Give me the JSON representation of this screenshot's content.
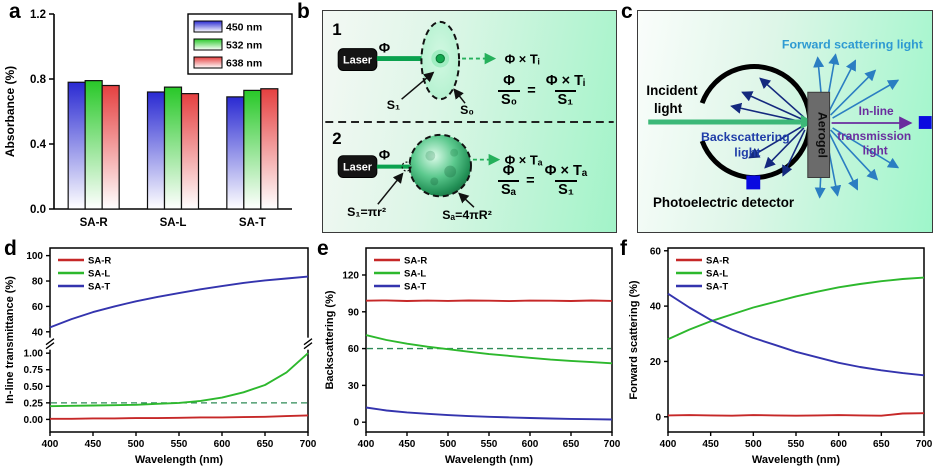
{
  "figure": {
    "panel_labels": {
      "a": "a",
      "b": "b",
      "c": "c",
      "d": "d",
      "e": "e",
      "f": "f"
    }
  },
  "panel_b": {
    "step1": "1",
    "step2": "2",
    "laser": "Laser",
    "phi": "Φ",
    "s1": "S₁",
    "s0": "S₀",
    "phi_ti": "Φ × Tᵢ",
    "phi_ta": "Φ × Tₐ",
    "s1_formula": "S₁=πr²",
    "sa_formula": "Sₐ=4πR²",
    "eq1": {
      "num1": "Φ",
      "den1": "S₀",
      "equals": "=",
      "num2": "Φ × Tᵢ",
      "den2": "S₁"
    },
    "eq2": {
      "num1": "Φ",
      "den1": "Sₐ",
      "equals": "=",
      "num2": "Φ × Tₐ",
      "den2": "S₁"
    }
  },
  "panel_c": {
    "incident_line1": "Incident",
    "incident_line2": "light",
    "forward_label": "Forward scattering light",
    "back_line1": "Backscattering",
    "back_line2": "light",
    "aerogel": "Aerogel",
    "inline_line1": "In-line",
    "inline_line2": "transmission",
    "inline_line3": "light",
    "detector_label": "Photoelectric detector",
    "colors": {
      "forward": "#2e9ad2",
      "back": "#1f3da8",
      "inline": "#6a2d9e",
      "incident_arrow": "#3cb878"
    }
  },
  "chart_data": [
    {
      "type": "bar",
      "ylabel": "Absorbance (%)",
      "categories": [
        "SA-R",
        "SA-L",
        "SA-T"
      ],
      "series": [
        {
          "name": "450 nm",
          "color": "#2a2ad2",
          "values": [
            0.78,
            0.72,
            0.69
          ]
        },
        {
          "name": "532 nm",
          "color": "#28c828",
          "values": [
            0.79,
            0.75,
            0.73
          ]
        },
        {
          "name": "638 nm",
          "color": "#e54040",
          "values": [
            0.76,
            0.71,
            0.74
          ]
        }
      ],
      "ylim": [
        0,
        1.2
      ],
      "yticks": [
        0,
        0.4,
        0.8,
        1.2
      ],
      "ytick_labels": [
        "0.0",
        "0.4",
        "0.8",
        "1.2"
      ],
      "legend_pos": "top-right",
      "grid": false
    },
    {
      "type": "line",
      "xlabel": "Wavelength (nm)",
      "ylabel": "In-line transmittance (%)",
      "xlim": [
        400,
        700
      ],
      "xticks": [
        400,
        450,
        500,
        550,
        600,
        650,
        700
      ],
      "broken_axis": true,
      "break_frac": 0.52,
      "segments": [
        {
          "ylim": [
            35,
            106
          ],
          "yticks": [
            40,
            60,
            80,
            100
          ],
          "ytick_labels": [
            "40",
            "60",
            "80",
            "100"
          ],
          "span": [
            0,
            0.49
          ]
        },
        {
          "ylim": [
            -0.19,
            1.06
          ],
          "yticks": [
            0,
            0.25,
            0.5,
            0.75,
            1
          ],
          "ytick_labels": [
            "0.00",
            "0.25",
            "0.50",
            "0.75",
            "1.00"
          ],
          "span": [
            0.55,
            1
          ]
        }
      ],
      "ref_lines": [
        {
          "value": 0.25,
          "segment": 1,
          "color": "#2e8b57"
        }
      ],
      "x": [
        400,
        425,
        450,
        475,
        500,
        525,
        550,
        575,
        600,
        625,
        650,
        675,
        700
      ],
      "series": [
        {
          "name": "SA-R",
          "color": "#c62828",
          "segment": 1,
          "y": [
            0.01,
            0.01,
            0.015,
            0.015,
            0.02,
            0.02,
            0.025,
            0.03,
            0.03,
            0.035,
            0.04,
            0.05,
            0.06
          ]
        },
        {
          "name": "SA-L",
          "color": "#2db82d",
          "segment": 1,
          "y": [
            0.2,
            0.205,
            0.21,
            0.215,
            0.22,
            0.235,
            0.25,
            0.28,
            0.33,
            0.41,
            0.52,
            0.71,
            1.0
          ]
        },
        {
          "name": "SA-T",
          "color": "#3434ae",
          "segment": 0,
          "y": [
            43.5,
            50,
            55.5,
            60,
            64,
            67.5,
            70.5,
            73.5,
            76,
            78.5,
            80.5,
            82,
            83.5
          ]
        }
      ],
      "legend_pos": "top-left",
      "grid": false
    },
    {
      "type": "line",
      "xlabel": "Wavelength (nm)",
      "ylabel": "Backscattering (%)",
      "xlim": [
        400,
        700
      ],
      "xticks": [
        400,
        450,
        500,
        550,
        600,
        650,
        700
      ],
      "segments": [
        {
          "ylim": [
            -8,
            142
          ],
          "yticks": [
            0,
            30,
            60,
            90,
            120
          ],
          "ytick_labels": [
            "0",
            "30",
            "60",
            "90",
            "120"
          ],
          "span": [
            0,
            1
          ]
        }
      ],
      "ref_lines": [
        {
          "value": 60,
          "segment": 0,
          "color": "#2e8b57"
        }
      ],
      "x": [
        400,
        425,
        450,
        475,
        500,
        525,
        550,
        575,
        600,
        625,
        650,
        675,
        700
      ],
      "series": [
        {
          "name": "SA-R",
          "color": "#c62828",
          "segment": 0,
          "y": [
            99,
            99.3,
            98.8,
            99.1,
            98.9,
            99.2,
            99,
            98.7,
            99.1,
            99,
            98.8,
            99.2,
            98.9
          ]
        },
        {
          "name": "SA-L",
          "color": "#2db82d",
          "segment": 0,
          "y": [
            71,
            67,
            64,
            61.5,
            59.5,
            57.5,
            55.5,
            54,
            52.5,
            51,
            50,
            49,
            48
          ]
        },
        {
          "name": "SA-T",
          "color": "#3434ae",
          "segment": 0,
          "y": [
            12,
            9.5,
            8,
            6.8,
            5.8,
            5,
            4.4,
            3.9,
            3.4,
            3,
            2.7,
            2.4,
            2.2
          ]
        }
      ],
      "legend_pos": "top-left",
      "grid": false
    },
    {
      "type": "line",
      "xlabel": "Wavelength (nm)",
      "ylabel": "Forward scattering (%)",
      "xlim": [
        400,
        700
      ],
      "xticks": [
        400,
        450,
        500,
        550,
        600,
        650,
        700
      ],
      "segments": [
        {
          "ylim": [
            -5.5,
            61
          ],
          "yticks": [
            0,
            20,
            40,
            60
          ],
          "ytick_labels": [
            "0",
            "20",
            "40",
            "60"
          ],
          "span": [
            0,
            1
          ]
        }
      ],
      "ref_lines": [],
      "x": [
        400,
        425,
        450,
        475,
        500,
        525,
        550,
        575,
        600,
        625,
        650,
        675,
        700
      ],
      "series": [
        {
          "name": "SA-R",
          "color": "#c62828",
          "segment": 0,
          "y": [
            0.5,
            0.6,
            0.5,
            0.4,
            0.6,
            0.5,
            0.4,
            0.5,
            0.6,
            0.5,
            0.4,
            1.2,
            1.3
          ]
        },
        {
          "name": "SA-L",
          "color": "#2db82d",
          "segment": 0,
          "y": [
            28,
            31.5,
            34.5,
            37,
            39.5,
            41.5,
            43.5,
            45.2,
            46.8,
            48,
            49,
            49.8,
            50.3
          ]
        },
        {
          "name": "SA-T",
          "color": "#3434ae",
          "segment": 0,
          "y": [
            44.5,
            39.5,
            35,
            31.5,
            28.5,
            26,
            23.5,
            21.5,
            19.5,
            18,
            16.8,
            15.8,
            15
          ]
        }
      ],
      "legend_pos": "top-left",
      "grid": false
    }
  ]
}
